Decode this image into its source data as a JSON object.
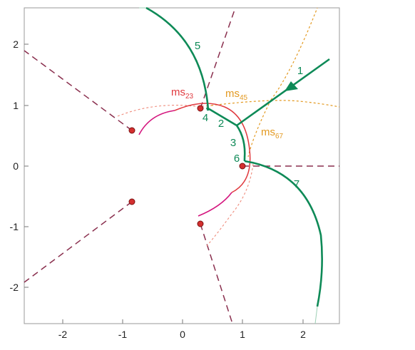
{
  "x_ticks": [
    "-2",
    "-1",
    "0",
    "1",
    "2"
  ],
  "y_ticks": [
    "2",
    "1",
    "0",
    "-1",
    "-2"
  ],
  "segment_labels": [
    {
      "text": "1"
    },
    {
      "text": "2"
    },
    {
      "text": "3"
    },
    {
      "text": "4"
    },
    {
      "text": "5"
    },
    {
      "text": "6"
    },
    {
      "text": "7"
    }
  ],
  "ms_labels": [
    {
      "base": "ms",
      "sub": "23"
    },
    {
      "base": "ms",
      "sub": "45"
    },
    {
      "base": "ms",
      "sub": "67"
    }
  ],
  "colors": {
    "path": "#0e8a57",
    "ms23": "#e0393e",
    "ms45": "#e39a22",
    "dashed_line": "#8a2f4e",
    "magenta": "#d4157e",
    "point_fill": "#d32f2f",
    "point_edge": "#7a1010",
    "frame": "#9a9a9a"
  }
}
